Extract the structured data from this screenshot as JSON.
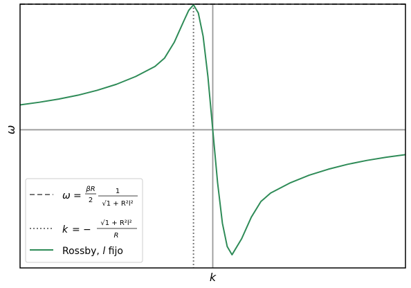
{
  "chart_data": {
    "type": "line",
    "xlabel": "k",
    "ylabel": "ω",
    "xlim": [
      -10,
      10
    ],
    "ylim": [
      -1.1,
      1.0
    ],
    "grid": false,
    "legend_position": "lower-left",
    "x_ticks": [
      {
        "value": 0,
        "label": "k"
      }
    ],
    "y_ticks": [
      {
        "value": 0,
        "label": "ω"
      }
    ],
    "series": [
      {
        "name": "Rossby, l fijo",
        "color": "#2e8b57",
        "style": "solid",
        "x": [
          -10,
          -9,
          -8,
          -7,
          -6,
          -5,
          -4,
          -3,
          -2.5,
          -2,
          -1.5,
          -1.25,
          -1,
          -0.75,
          -0.5,
          -0.25,
          0,
          0.25,
          0.5,
          0.75,
          1,
          1.5,
          2,
          2.5,
          3,
          4,
          5,
          6,
          7,
          8,
          9,
          10
        ],
        "y": [
          0.198,
          0.219,
          0.244,
          0.275,
          0.314,
          0.362,
          0.424,
          0.504,
          0.571,
          0.696,
          0.867,
          0.95,
          0.995,
          0.93,
          0.744,
          0.421,
          0.0,
          -0.421,
          -0.744,
          -0.93,
          -0.995,
          -0.867,
          -0.696,
          -0.571,
          -0.504,
          -0.424,
          -0.362,
          -0.314,
          -0.275,
          -0.244,
          -0.219,
          -0.198
        ]
      }
    ],
    "reference_lines": [
      {
        "name": "ω_max",
        "orientation": "horizontal",
        "value": 1.0,
        "style": "dashed",
        "color": "#777777"
      },
      {
        "name": "k_max",
        "orientation": "vertical",
        "value": -1.0,
        "style": "dotted",
        "color": "#777777"
      },
      {
        "orientation": "horizontal",
        "value": 0,
        "style": "solid",
        "color": "#999999"
      },
      {
        "orientation": "vertical",
        "value": 0,
        "style": "solid",
        "color": "#999999"
      }
    ],
    "legend": [
      {
        "label_parts": {
          "lhs": "ω",
          "eq": "=",
          "num": "βR",
          "den": "2",
          "frac_num": "1",
          "frac_den": "√1 + R²l²"
        },
        "style": "dashed",
        "color": "#777777"
      },
      {
        "label_parts": {
          "lhs": "k",
          "eq": "=",
          "sign": "−",
          "frac_num": "√1 + R²l²",
          "frac_den": "R"
        },
        "style": "dotted",
        "color": "#777777"
      },
      {
        "label_parts": {
          "lhs": "Rossby,",
          "italic": "l",
          "rhs": "fijo"
        },
        "style": "solid",
        "color": "#2e8b57"
      }
    ]
  }
}
